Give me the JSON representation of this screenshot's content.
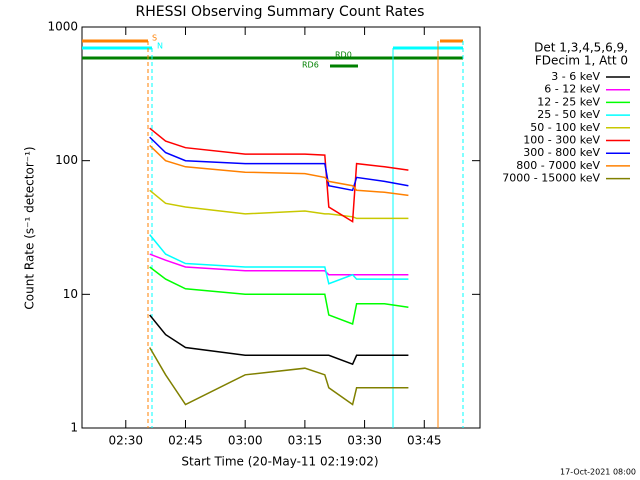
{
  "chart_data": {
    "type": "line",
    "title": "RHESSI Observing Summary Count Rates",
    "x_label": "Start Time (20-May-11 02:19:02)",
    "y_label": "Count Rate (s⁻¹ detector⁻¹)",
    "legend_title": [
      "Det 1,3,4,5,6,9,",
      "FDecim 1, Att 0"
    ],
    "annotations": [
      "S",
      "N",
      "RD0",
      "RD6"
    ],
    "footer": "17-Oct-2021 08:00",
    "log_y": true,
    "xlim": [
      "02:19",
      "03:59"
    ],
    "xticks": [
      "02:30",
      "02:45",
      "03:00",
      "03:15",
      "03:30",
      "03:45"
    ],
    "ylim": [
      1,
      1000
    ],
    "yticks": [
      1,
      10,
      100,
      1000
    ],
    "x": [
      "02:36",
      "02:40",
      "02:45",
      "03:00",
      "03:15",
      "03:20",
      "03:21",
      "03:27",
      "03:28",
      "03:35",
      "03:41"
    ],
    "series": [
      {
        "name": "3 - 6 keV",
        "color": "#000000",
        "values": [
          7,
          5,
          4,
          3.5,
          3.5,
          3.5,
          3.5,
          3,
          3.5,
          3.5,
          3.5
        ]
      },
      {
        "name": "6 - 12 keV",
        "color": "#ff00ff",
        "values": [
          20,
          18,
          16,
          15,
          15,
          15,
          14,
          14,
          14,
          14,
          14
        ]
      },
      {
        "name": "12 - 25 keV",
        "color": "#00ff00",
        "values": [
          16,
          13,
          11,
          10,
          10,
          10,
          7,
          6,
          8.5,
          8.5,
          8
        ]
      },
      {
        "name": "25 - 50 keV",
        "color": "#00ffff",
        "values": [
          28,
          20,
          17,
          16,
          16,
          16,
          12,
          14,
          13,
          13,
          13
        ]
      },
      {
        "name": "50 - 100 keV",
        "color": "#c8c800",
        "values": [
          60,
          48,
          45,
          40,
          42,
          40,
          40,
          38,
          37,
          37,
          37
        ]
      },
      {
        "name": "100 - 300 keV",
        "color": "#ff0000",
        "values": [
          175,
          140,
          125,
          112,
          112,
          110,
          45,
          35,
          95,
          90,
          85
        ]
      },
      {
        "name": "300 - 800 keV",
        "color": "#0000ff",
        "values": [
          150,
          115,
          100,
          95,
          95,
          95,
          65,
          60,
          75,
          70,
          65
        ]
      },
      {
        "name": "800 - 7000 keV",
        "color": "#ff8000",
        "values": [
          130,
          100,
          90,
          82,
          80,
          75,
          70,
          65,
          60,
          58,
          55
        ]
      },
      {
        "name": "7000 - 15000 keV",
        "color": "#808000",
        "values": [
          4,
          2.5,
          1.5,
          2.5,
          2.8,
          2.5,
          2,
          1.5,
          2,
          2,
          2
        ]
      }
    ]
  }
}
